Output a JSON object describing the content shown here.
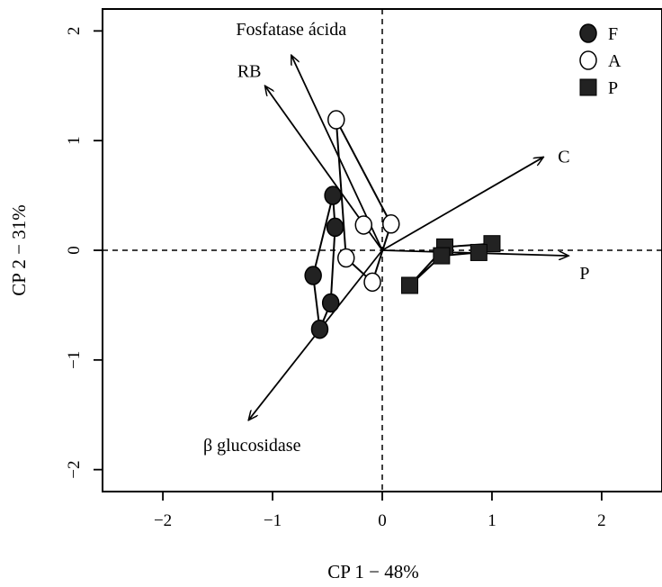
{
  "chart_data": {
    "type": "scatter",
    "xlabel": "CP 1 − 48%",
    "ylabel": "CP 2 − 31%",
    "xlim": [
      -2.55,
      2.55
    ],
    "ylim": [
      -2.2,
      2.2
    ],
    "x_ticks": [
      -2,
      -1,
      0,
      1,
      2
    ],
    "y_ticks": [
      -2,
      -1,
      0,
      1,
      2
    ],
    "reference_lines": {
      "x": 0,
      "y": 0,
      "style": "dashed"
    },
    "legend_position": "top-right",
    "series": [
      {
        "name": "F",
        "marker": "filled-circle",
        "color": "#222222",
        "points": [
          [
            -0.45,
            0.5
          ],
          [
            -0.43,
            0.21
          ],
          [
            -0.63,
            -0.23
          ],
          [
            -0.47,
            -0.48
          ],
          [
            -0.57,
            -0.72
          ]
        ],
        "hull": [
          [
            -0.45,
            0.5
          ],
          [
            -0.43,
            0.21
          ],
          [
            -0.47,
            -0.48
          ],
          [
            -0.57,
            -0.72
          ],
          [
            -0.63,
            -0.23
          ]
        ]
      },
      {
        "name": "A",
        "marker": "open-circle",
        "color": "#222222",
        "points": [
          [
            -0.42,
            1.19
          ],
          [
            -0.17,
            0.23
          ],
          [
            0.08,
            0.24
          ],
          [
            -0.33,
            -0.07
          ],
          [
            -0.09,
            -0.29
          ]
        ],
        "hull": [
          [
            -0.42,
            1.19
          ],
          [
            0.08,
            0.24
          ],
          [
            -0.09,
            -0.29
          ],
          [
            -0.33,
            -0.07
          ]
        ]
      },
      {
        "name": "P",
        "marker": "filled-square",
        "color": "#222222",
        "points": [
          [
            0.57,
            0.03
          ],
          [
            1.0,
            0.06
          ],
          [
            0.88,
            -0.02
          ],
          [
            0.54,
            -0.05
          ],
          [
            0.25,
            -0.32
          ]
        ],
        "hull": [
          [
            0.25,
            -0.32
          ],
          [
            0.57,
            0.03
          ],
          [
            1.0,
            0.06
          ],
          [
            0.88,
            -0.02
          ],
          [
            0.54,
            -0.05
          ]
        ]
      }
    ],
    "vectors": [
      {
        "label": "Fosfatase ácida",
        "x": -0.83,
        "y": 1.78
      },
      {
        "label": "RB",
        "x": -1.07,
        "y": 1.5
      },
      {
        "label": "C",
        "x": 1.47,
        "y": 0.85
      },
      {
        "label": "P",
        "x": 1.7,
        "y": -0.05
      },
      {
        "label": "β glucosidase",
        "x": -1.22,
        "y": -1.55
      }
    ]
  }
}
